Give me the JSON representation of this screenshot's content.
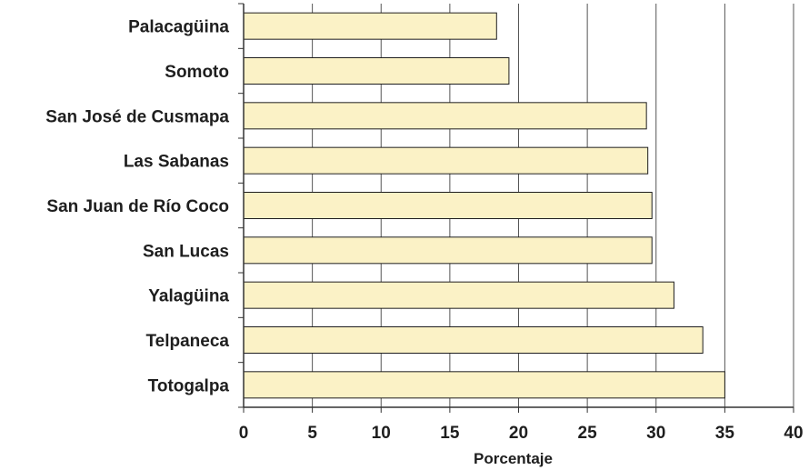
{
  "chart_data": {
    "type": "bar",
    "orientation": "horizontal",
    "categories": [
      "Palacagüina",
      "Somoto",
      "San José de Cusmapa",
      "Las Sabanas",
      "San Juan de Río Coco",
      "San Lucas",
      "Yalagüina",
      "Telpaneca",
      "Totogalpa"
    ],
    "values": [
      18.4,
      19.3,
      29.3,
      29.4,
      29.7,
      29.7,
      31.3,
      33.4,
      35.0
    ],
    "title": "",
    "xlabel": "Porcentaje",
    "ylabel": "",
    "xlim": [
      0,
      40
    ],
    "xticks": [
      0,
      5,
      10,
      15,
      20,
      25,
      30,
      35,
      40
    ],
    "grid": "vertical",
    "legend": "none",
    "colors": {
      "bar_fill": "#fbf2c6",
      "bar_stroke": "#1e1e1e",
      "grid": "#555555",
      "axis": "#333333",
      "text": "#1e1e1e"
    }
  }
}
